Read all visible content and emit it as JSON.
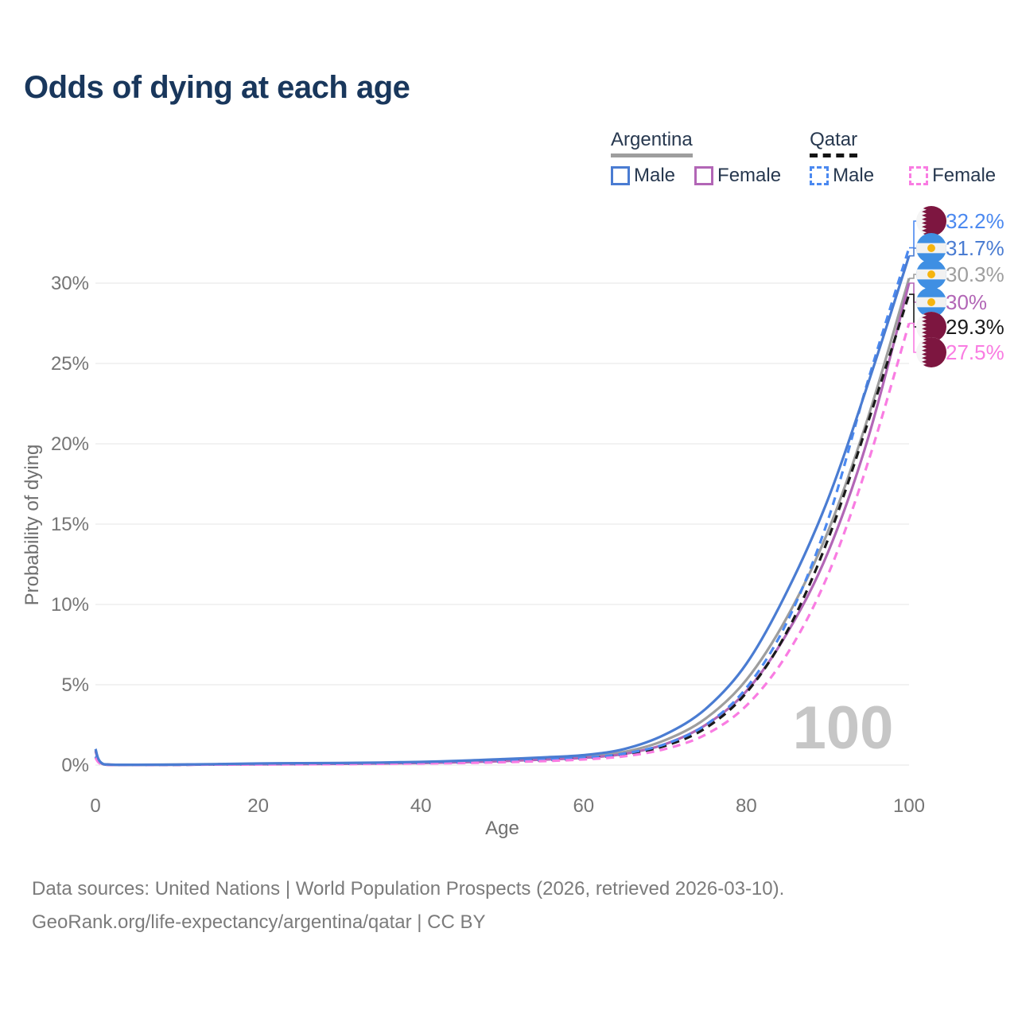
{
  "header": {
    "title": "Odds of dying at each age"
  },
  "legend": {
    "groups": [
      {
        "country": "Argentina",
        "line_style": "solid",
        "underline_color": "#9e9e9e",
        "items": [
          {
            "label": "Male",
            "color": "#4a7cd2",
            "dashed": false
          },
          {
            "label": "Female",
            "color": "#b266b6",
            "dashed": false
          }
        ]
      },
      {
        "country": "Qatar",
        "line_style": "dashed",
        "underline_color": "#141414",
        "items": [
          {
            "label": "Male",
            "color": "#4b89f0",
            "dashed": true
          },
          {
            "label": "Female",
            "color": "#f97ce2",
            "dashed": true
          }
        ]
      }
    ]
  },
  "chart_data": {
    "type": "line",
    "title": "Odds of dying at each age",
    "xlabel": "Age",
    "ylabel": "Probability of dying",
    "xlim": [
      0,
      100
    ],
    "ylim": [
      0,
      32.5
    ],
    "xticks": [
      "0",
      "20",
      "40",
      "60",
      "80",
      "100"
    ],
    "xtick_values": [
      0,
      20,
      40,
      60,
      80,
      100
    ],
    "yticks": [
      "0%",
      "5%",
      "10%",
      "15%",
      "20%",
      "25%",
      "30%"
    ],
    "ytick_values": [
      0,
      5,
      10,
      15,
      20,
      25,
      30
    ],
    "grid": "horizontal",
    "legend_position": "top-right",
    "watermark": "100",
    "x": [
      0,
      1,
      5,
      10,
      15,
      20,
      25,
      30,
      35,
      40,
      45,
      50,
      55,
      60,
      65,
      70,
      75,
      80,
      85,
      90,
      95,
      100
    ],
    "series": [
      {
        "name": "Argentina Male",
        "country": "Argentina",
        "sex": "Male",
        "color": "#4a7cd2",
        "dashed": false,
        "flag": "argentina",
        "end_label": "31.7%",
        "values": [
          1.0,
          0.06,
          0.02,
          0.03,
          0.06,
          0.1,
          0.12,
          0.13,
          0.16,
          0.2,
          0.27,
          0.37,
          0.48,
          0.62,
          1.0,
          1.9,
          3.5,
          6.3,
          10.8,
          16.5,
          23.8,
          31.7
        ]
      },
      {
        "name": "Argentina Female",
        "country": "Argentina",
        "sex": "Female",
        "color": "#b266b6",
        "dashed": false,
        "flag": "argentina",
        "end_label": "30%",
        "values": [
          0.86,
          0.05,
          0.02,
          0.02,
          0.04,
          0.05,
          0.06,
          0.08,
          0.1,
          0.13,
          0.18,
          0.25,
          0.34,
          0.45,
          0.7,
          1.3,
          2.5,
          4.6,
          8.2,
          13.2,
          20.4,
          30.0
        ]
      },
      {
        "name": "Argentina Both sexes",
        "country": "Argentina",
        "sex": "Both sexes",
        "color": "#9e9e9e",
        "dashed": false,
        "flag": "argentina",
        "end_label": "30.3%",
        "values": [
          0.93,
          0.05,
          0.02,
          0.03,
          0.05,
          0.08,
          0.09,
          0.11,
          0.13,
          0.17,
          0.22,
          0.3,
          0.4,
          0.52,
          0.82,
          1.55,
          2.9,
          5.3,
          9.2,
          14.5,
          21.7,
          30.3
        ]
      },
      {
        "name": "Qatar Male",
        "country": "Qatar",
        "sex": "Male",
        "color": "#4b89f0",
        "dashed": true,
        "flag": "qatar",
        "end_label": "32.2%",
        "values": [
          0.55,
          0.04,
          0.02,
          0.02,
          0.05,
          0.07,
          0.08,
          0.09,
          0.11,
          0.14,
          0.18,
          0.24,
          0.33,
          0.45,
          0.72,
          1.3,
          2.5,
          4.8,
          8.9,
          15.2,
          24.0,
          32.2
        ]
      },
      {
        "name": "Qatar Both sexes",
        "country": "Qatar",
        "sex": "Both sexes",
        "color": "#1a1a1a",
        "dashed": true,
        "flag": "qatar",
        "end_label": "29.3%",
        "values": [
          0.51,
          0.04,
          0.02,
          0.02,
          0.04,
          0.06,
          0.07,
          0.08,
          0.1,
          0.13,
          0.17,
          0.22,
          0.3,
          0.42,
          0.67,
          1.2,
          2.3,
          4.5,
          8.3,
          14.0,
          21.4,
          29.3
        ]
      },
      {
        "name": "Qatar Female",
        "country": "Qatar",
        "sex": "Female",
        "color": "#f97ce2",
        "dashed": true,
        "flag": "qatar",
        "end_label": "27.5%",
        "values": [
          0.45,
          0.03,
          0.01,
          0.02,
          0.03,
          0.04,
          0.05,
          0.06,
          0.08,
          0.1,
          0.13,
          0.18,
          0.25,
          0.35,
          0.55,
          1.0,
          1.9,
          3.7,
          6.9,
          11.8,
          18.9,
          27.5
        ]
      }
    ]
  },
  "footer": {
    "line1": "Data sources: United Nations | World Population Prospects (2026, retrieved 2026-03-10).",
    "line2": "GeoRank.org/life-expectancy/argentina/qatar | CC BY"
  }
}
